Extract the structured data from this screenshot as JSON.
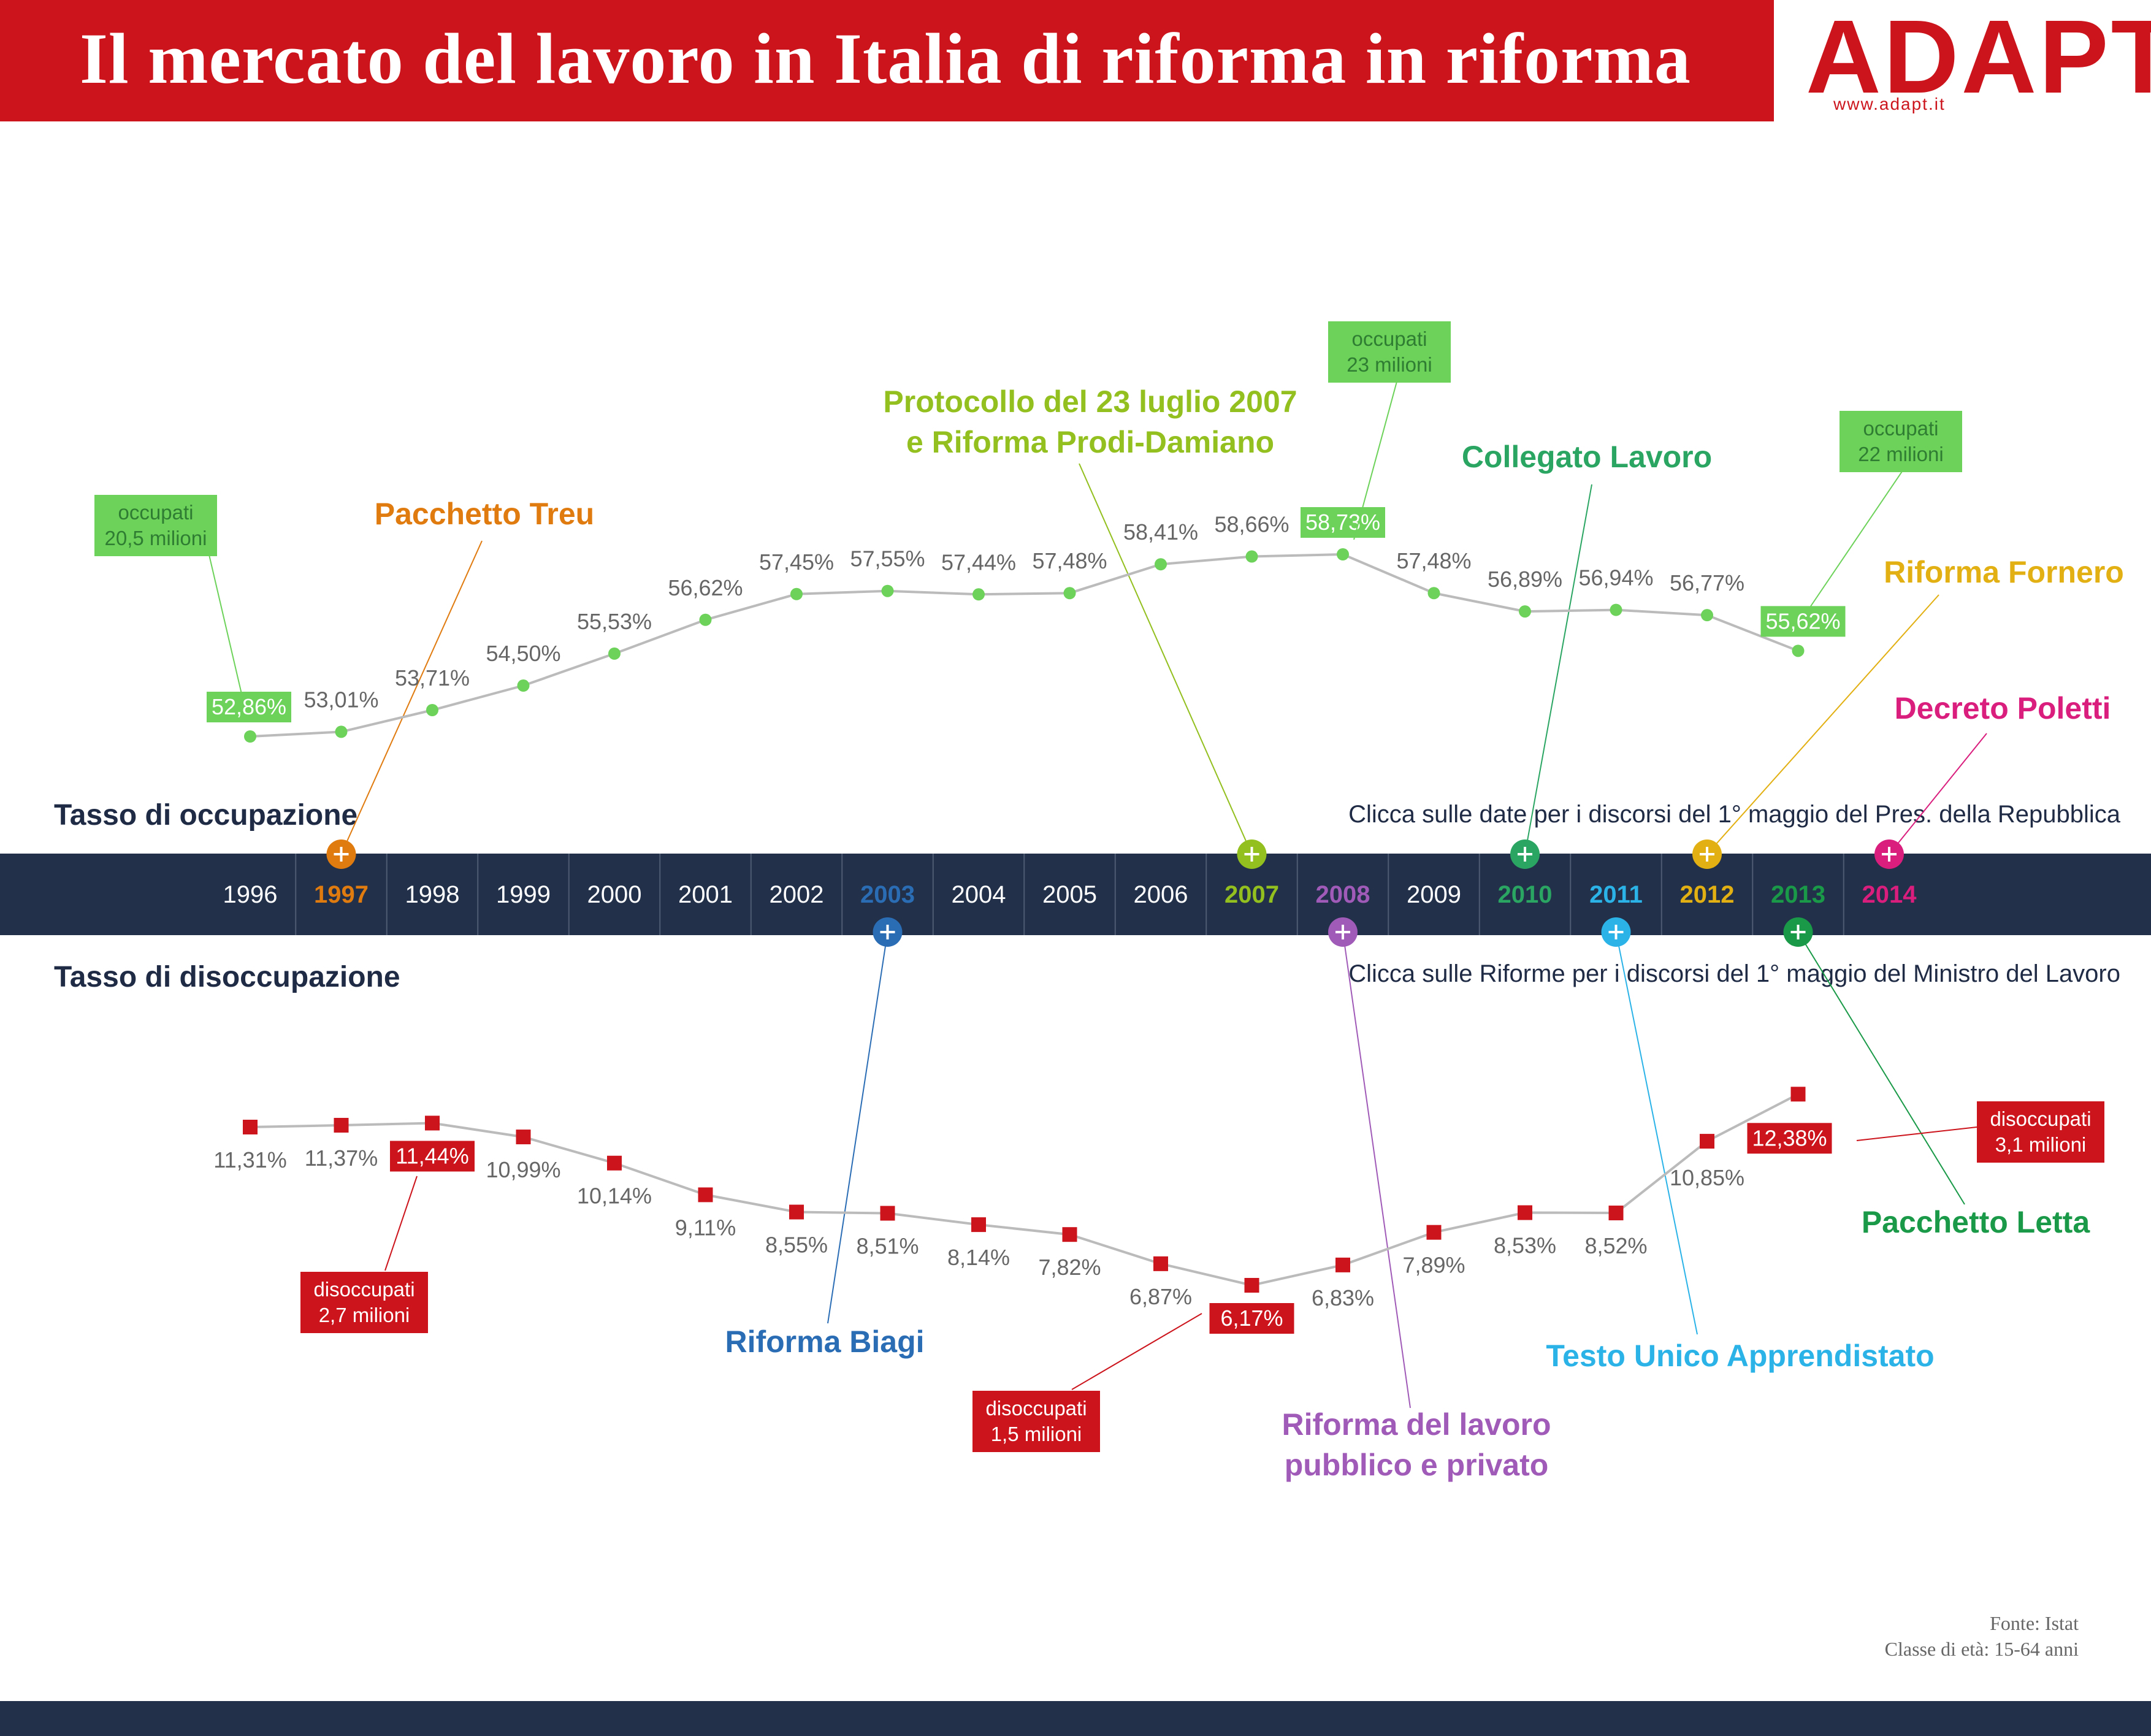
{
  "header": {
    "title": "Il mercato del lavoro in Italia di riforma in riforma",
    "logo_text": "ADAPT",
    "logo_url": "www.adapt.it",
    "color": "#cc141c"
  },
  "sections": {
    "employment_title": "Tasso di occupazione",
    "unemployment_title": "Tasso di disoccupazione",
    "employment_instruction": "Clicca sulle date per i discorsi del 1° maggio del Pres. della Repubblica",
    "unemployment_instruction": "Clicca sulle Riforme per i discorsi del 1° maggio del Ministro del Lavoro"
  },
  "source": {
    "line1": "Fonte: Istat",
    "line2": "Classe di età: 15-64 anni"
  },
  "timeline": {
    "years": [
      {
        "label": "1996",
        "color": "#ffffff"
      },
      {
        "label": "1997",
        "color": "#e07b10"
      },
      {
        "label": "1998",
        "color": "#ffffff"
      },
      {
        "label": "1999",
        "color": "#ffffff"
      },
      {
        "label": "2000",
        "color": "#ffffff"
      },
      {
        "label": "2001",
        "color": "#ffffff"
      },
      {
        "label": "2002",
        "color": "#ffffff"
      },
      {
        "label": "2003",
        "color": "#2b6db5"
      },
      {
        "label": "2004",
        "color": "#ffffff"
      },
      {
        "label": "2005",
        "color": "#ffffff"
      },
      {
        "label": "2006",
        "color": "#ffffff"
      },
      {
        "label": "2007",
        "color": "#93bf1f"
      },
      {
        "label": "2008",
        "color": "#a05ab7"
      },
      {
        "label": "2009",
        "color": "#ffffff"
      },
      {
        "label": "2010",
        "color": "#2aa562"
      },
      {
        "label": "2011",
        "color": "#2bb3e8"
      },
      {
        "label": "2012",
        "color": "#e2b012"
      },
      {
        "label": "2013",
        "color": "#1a9a48"
      },
      {
        "label": "2014",
        "color": "#d91e7e"
      }
    ],
    "bar_color": "#22304a"
  },
  "chart_data": [
    {
      "type": "line",
      "title": "Tasso di occupazione",
      "x": [
        "1996",
        "1997",
        "1998",
        "1999",
        "2000",
        "2001",
        "2002",
        "2003",
        "2004",
        "2005",
        "2006",
        "2007",
        "2008",
        "2009",
        "2010",
        "2011",
        "2012",
        "2013"
      ],
      "values": [
        52.86,
        53.01,
        53.71,
        54.5,
        55.53,
        56.62,
        57.45,
        57.55,
        57.44,
        57.48,
        58.41,
        58.66,
        58.73,
        57.48,
        56.89,
        56.94,
        56.77,
        55.62
      ],
      "labels": [
        "52,86%",
        "53,01%",
        "53,71%",
        "54,50%",
        "55,53%",
        "56,62%",
        "57,45%",
        "57,55%",
        "57,44%",
        "57,48%",
        "58,41%",
        "58,66%",
        "58,73%",
        "57,48%",
        "56,89%",
        "56,94%",
        "56,77%",
        "55,62%"
      ],
      "highlighted": [
        0,
        12,
        17
      ],
      "marker_color": "#6dd25a",
      "line_color": "#bbbbbb",
      "ylim": [
        50,
        60
      ],
      "callouts": [
        {
          "index": 0,
          "line1": "occupati",
          "line2": "20,5 milioni"
        },
        {
          "index": 12,
          "line1": "occupati",
          "line2": "23 milioni"
        },
        {
          "index": 17,
          "line1": "occupati",
          "line2": "22 milioni"
        }
      ]
    },
    {
      "type": "line",
      "title": "Tasso di disoccupazione",
      "x": [
        "1996",
        "1997",
        "1998",
        "1999",
        "2000",
        "2001",
        "2002",
        "2003",
        "2004",
        "2005",
        "2006",
        "2007",
        "2008",
        "2009",
        "2010",
        "2011",
        "2012",
        "2013"
      ],
      "values": [
        11.31,
        11.37,
        11.44,
        10.99,
        10.14,
        9.11,
        8.55,
        8.51,
        8.14,
        7.82,
        6.87,
        6.17,
        6.83,
        7.89,
        8.53,
        8.52,
        10.85,
        12.38
      ],
      "labels": [
        "11,31%",
        "11,37%",
        "11,44%",
        "10,99%",
        "10,14%",
        "9,11%",
        "8,55%",
        "8,51%",
        "8,14%",
        "7,82%",
        "6,87%",
        "6,17%",
        "6,83%",
        "7,89%",
        "8,53%",
        "8,52%",
        "10,85%",
        "12,38%"
      ],
      "highlighted": [
        2,
        11,
        17
      ],
      "marker_color": "#cc141c",
      "line_color": "#bbbbbb",
      "ylim": [
        5,
        13
      ],
      "callouts": [
        {
          "index": 2,
          "line1": "disoccupati",
          "line2": "2,7 milioni"
        },
        {
          "index": 11,
          "line1": "disoccupati",
          "line2": "1,5 milioni"
        },
        {
          "index": 17,
          "line1": "disoccupati",
          "line2": "3,1 milioni"
        }
      ]
    }
  ],
  "reforms": [
    {
      "lines": [
        "Pacchetto Treu"
      ],
      "year_index": 1,
      "side": "top",
      "color": "#e07b10"
    },
    {
      "lines": [
        "Protocollo del 23 luglio 2007",
        "e Riforma Prodi-Damiano"
      ],
      "year_index": 11,
      "side": "top",
      "color": "#93bf1f"
    },
    {
      "lines": [
        "Collegato Lavoro"
      ],
      "year_index": 14,
      "side": "top",
      "color": "#2aa562"
    },
    {
      "lines": [
        "Riforma Fornero"
      ],
      "year_index": 16,
      "side": "top",
      "color": "#e2b012"
    },
    {
      "lines": [
        "Decreto Poletti"
      ],
      "year_index": 18,
      "side": "top",
      "color": "#d91e7e"
    },
    {
      "lines": [
        "Riforma Biagi"
      ],
      "year_index": 7,
      "side": "bottom",
      "color": "#2b6db5"
    },
    {
      "lines": [
        "Riforma del lavoro",
        "pubblico e privato"
      ],
      "year_index": 12,
      "side": "bottom",
      "color": "#a05ab7"
    },
    {
      "lines": [
        "Testo Unico Apprendistato"
      ],
      "year_index": 15,
      "side": "bottom",
      "color": "#2bb3e8"
    },
    {
      "lines": [
        "Pacchetto Letta"
      ],
      "year_index": 17,
      "side": "bottom",
      "color": "#1a9a48"
    }
  ]
}
